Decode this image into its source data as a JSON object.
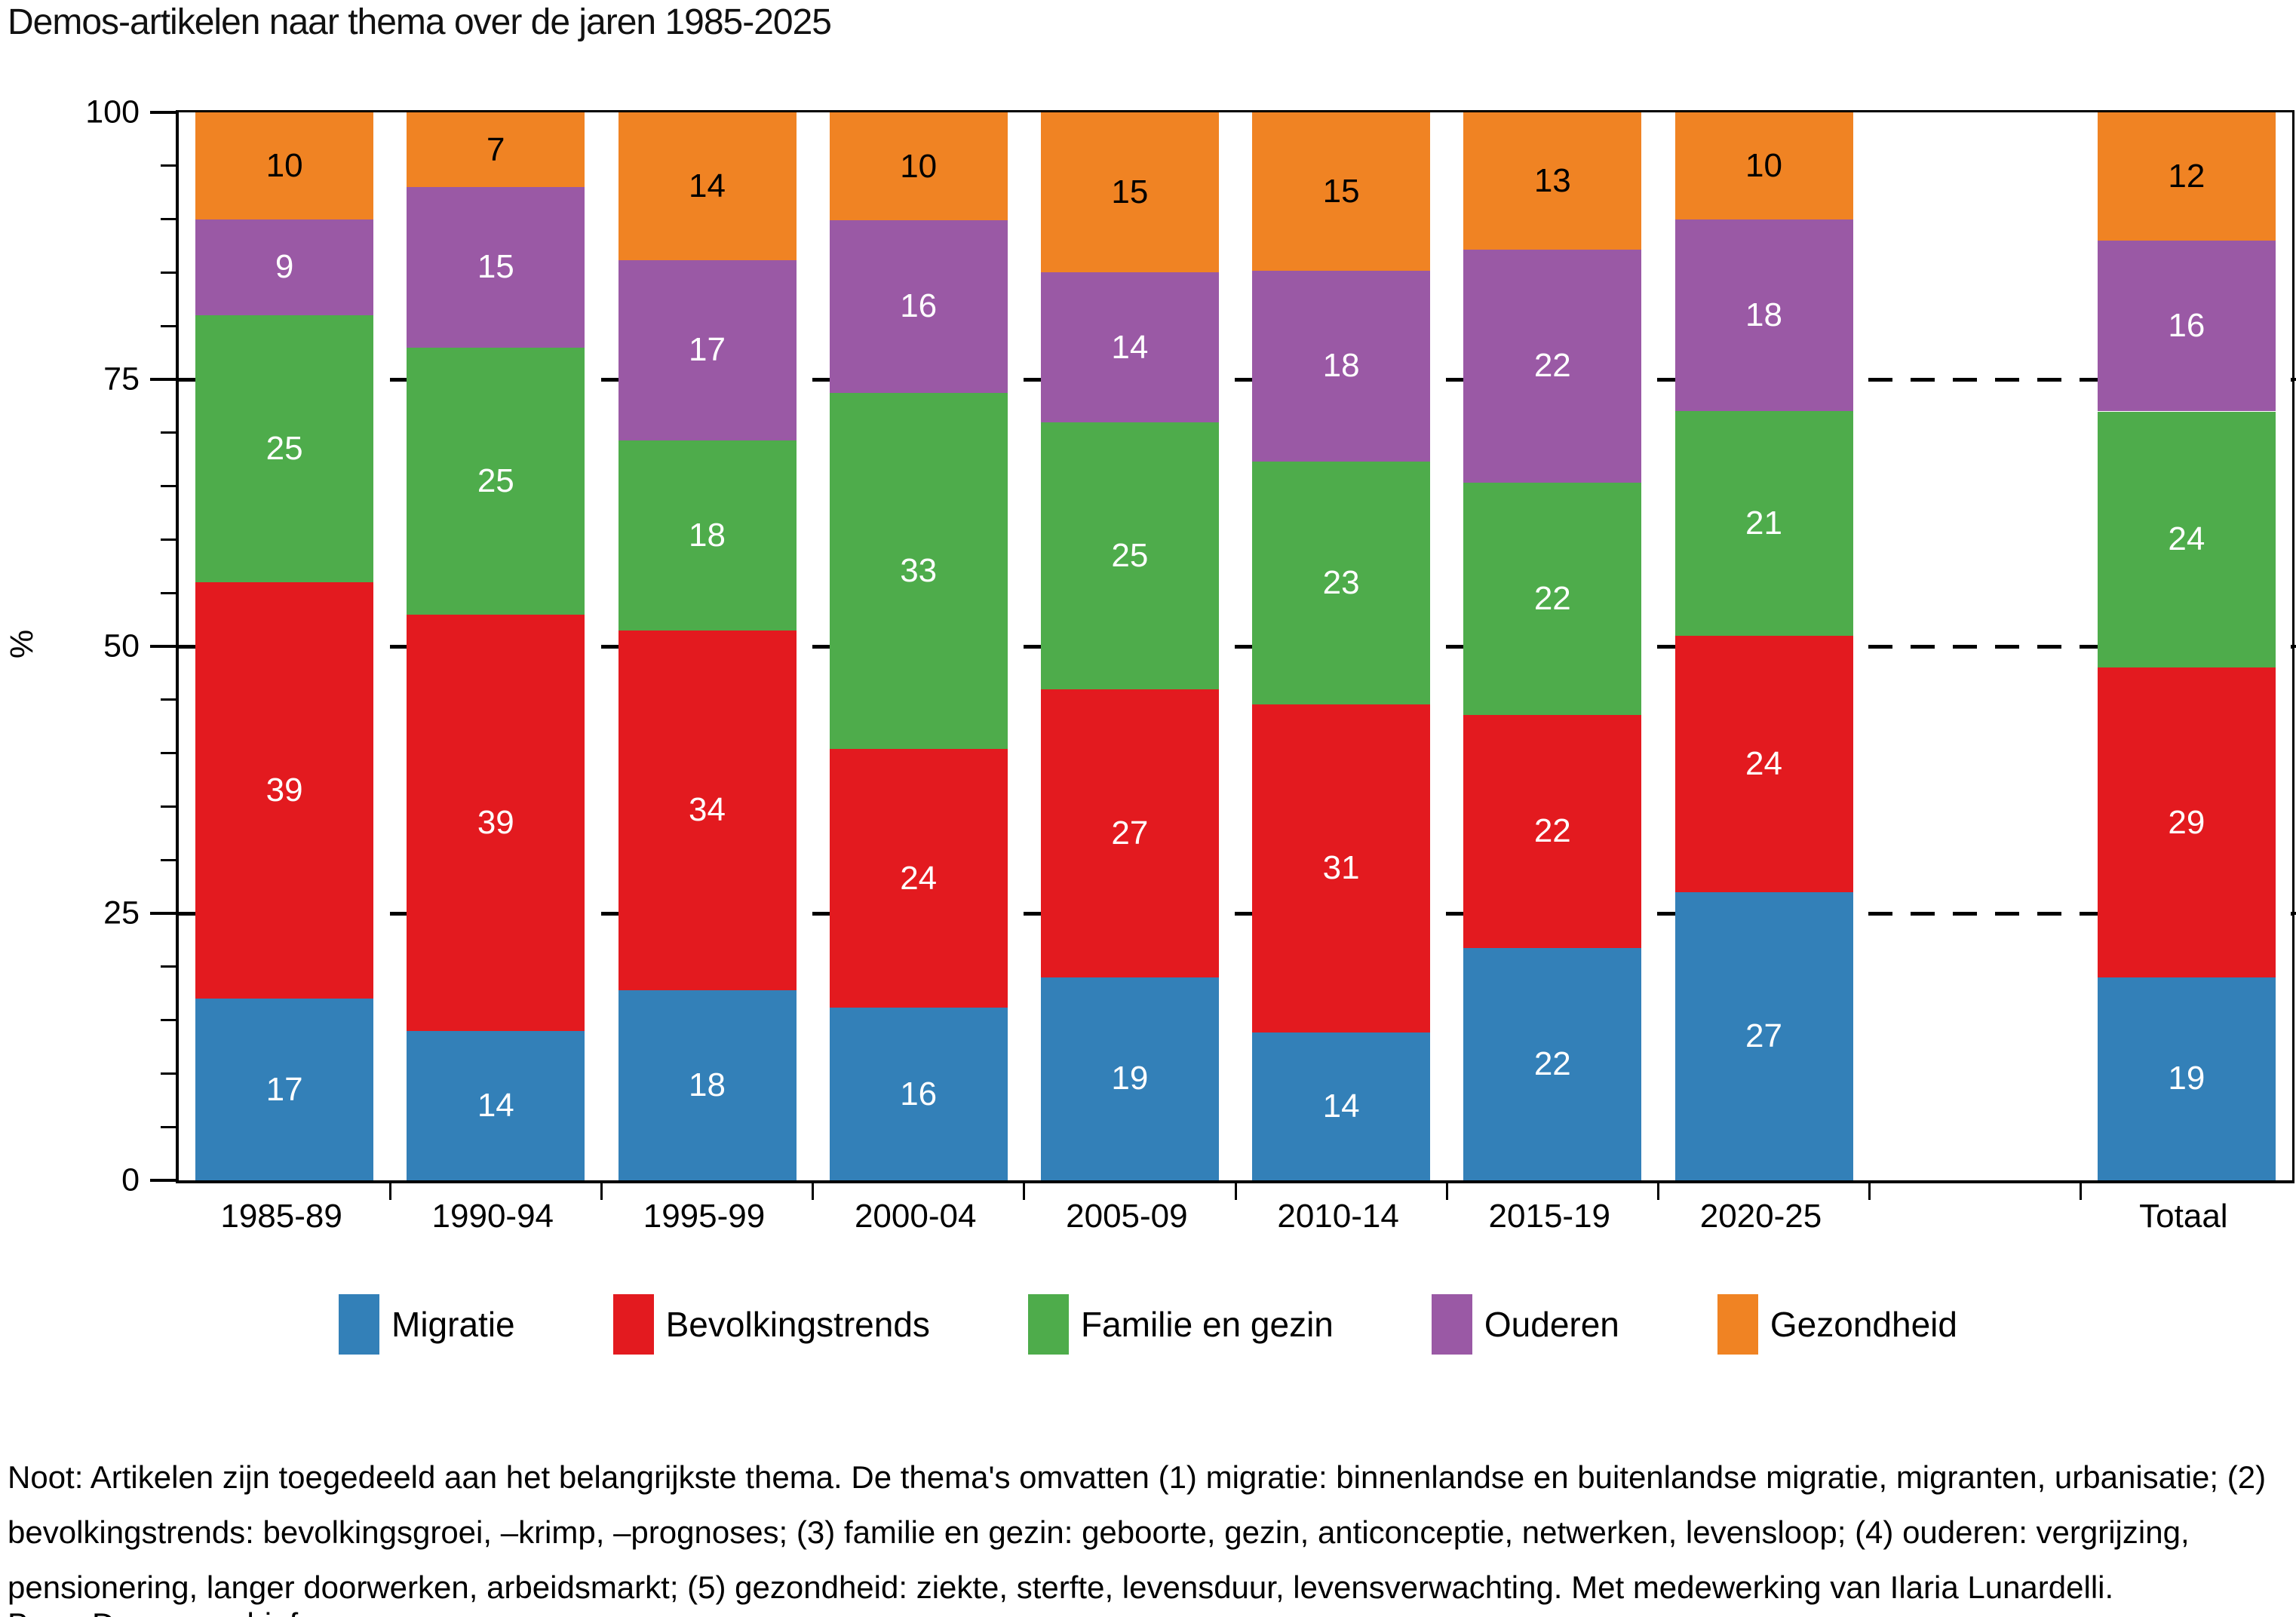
{
  "title": "Demos-artikelen naar thema over de jaren 1985-2025",
  "chart_data": {
    "type": "bar",
    "stacked": true,
    "unit": "%",
    "title": "Demos-artikelen naar thema over de jaren 1985-2025",
    "categories": [
      "1985-89",
      "1990-94",
      "1995-99",
      "2000-04",
      "2005-09",
      "2010-14",
      "2015-19",
      "2020-25",
      "Totaal"
    ],
    "series": [
      {
        "name": "Migratie",
        "color": "#3380B8",
        "label_color": "#ffffff",
        "values": [
          17,
          14,
          18,
          16,
          19,
          14,
          22,
          27,
          19
        ]
      },
      {
        "name": "Bevolkingstrends",
        "color": "#E31A1F",
        "label_color": "#ffffff",
        "values": [
          39,
          39,
          34,
          24,
          27,
          31,
          22,
          24,
          29
        ]
      },
      {
        "name": "Familie en gezin",
        "color": "#4EAC4B",
        "label_color": "#ffffff",
        "values": [
          25,
          25,
          18,
          33,
          25,
          23,
          22,
          21,
          24
        ]
      },
      {
        "name": "Ouderen",
        "color": "#9A59A5",
        "label_color": "#ffffff",
        "values": [
          9,
          15,
          17,
          16,
          14,
          18,
          22,
          18,
          16
        ]
      },
      {
        "name": "Gezondheid",
        "color": "#F08323",
        "label_color": "#000000",
        "values": [
          10,
          7,
          14,
          10,
          15,
          15,
          13,
          10,
          12
        ]
      }
    ],
    "ylabel": "%",
    "ylim": [
      0,
      100
    ],
    "ytick_labels": [
      "0",
      "25",
      "50",
      "75",
      "100"
    ],
    "yticks": [
      0,
      25,
      50,
      75,
      100
    ],
    "minor_tick_step": 5,
    "gridlines": [
      25,
      50,
      75
    ],
    "grid_style": "dashed",
    "legend_position": "bottom",
    "gap_before_last_category": true
  },
  "note": "Noot: Artikelen zijn toegedeeld aan het belangrijkste thema. De thema's omvatten (1) migratie: binnenlandse en buitenlandse migratie, migranten, urbanisatie; (2) bevolkingstrends: bevolkingsgroei, –krimp, –prognoses; (3) familie en gezin: geboorte, gezin, anticonceptie, netwerken, levensloop; (4) ouderen: vergrijzing, pensionering, langer doorwerken, arbeidsmarkt; (5) gezondheid: ziekte, sterfte, levensduur, levensverwachting. Met medewerking van Ilaria Lunardelli.",
  "bron": "Bron: Demos-archief."
}
